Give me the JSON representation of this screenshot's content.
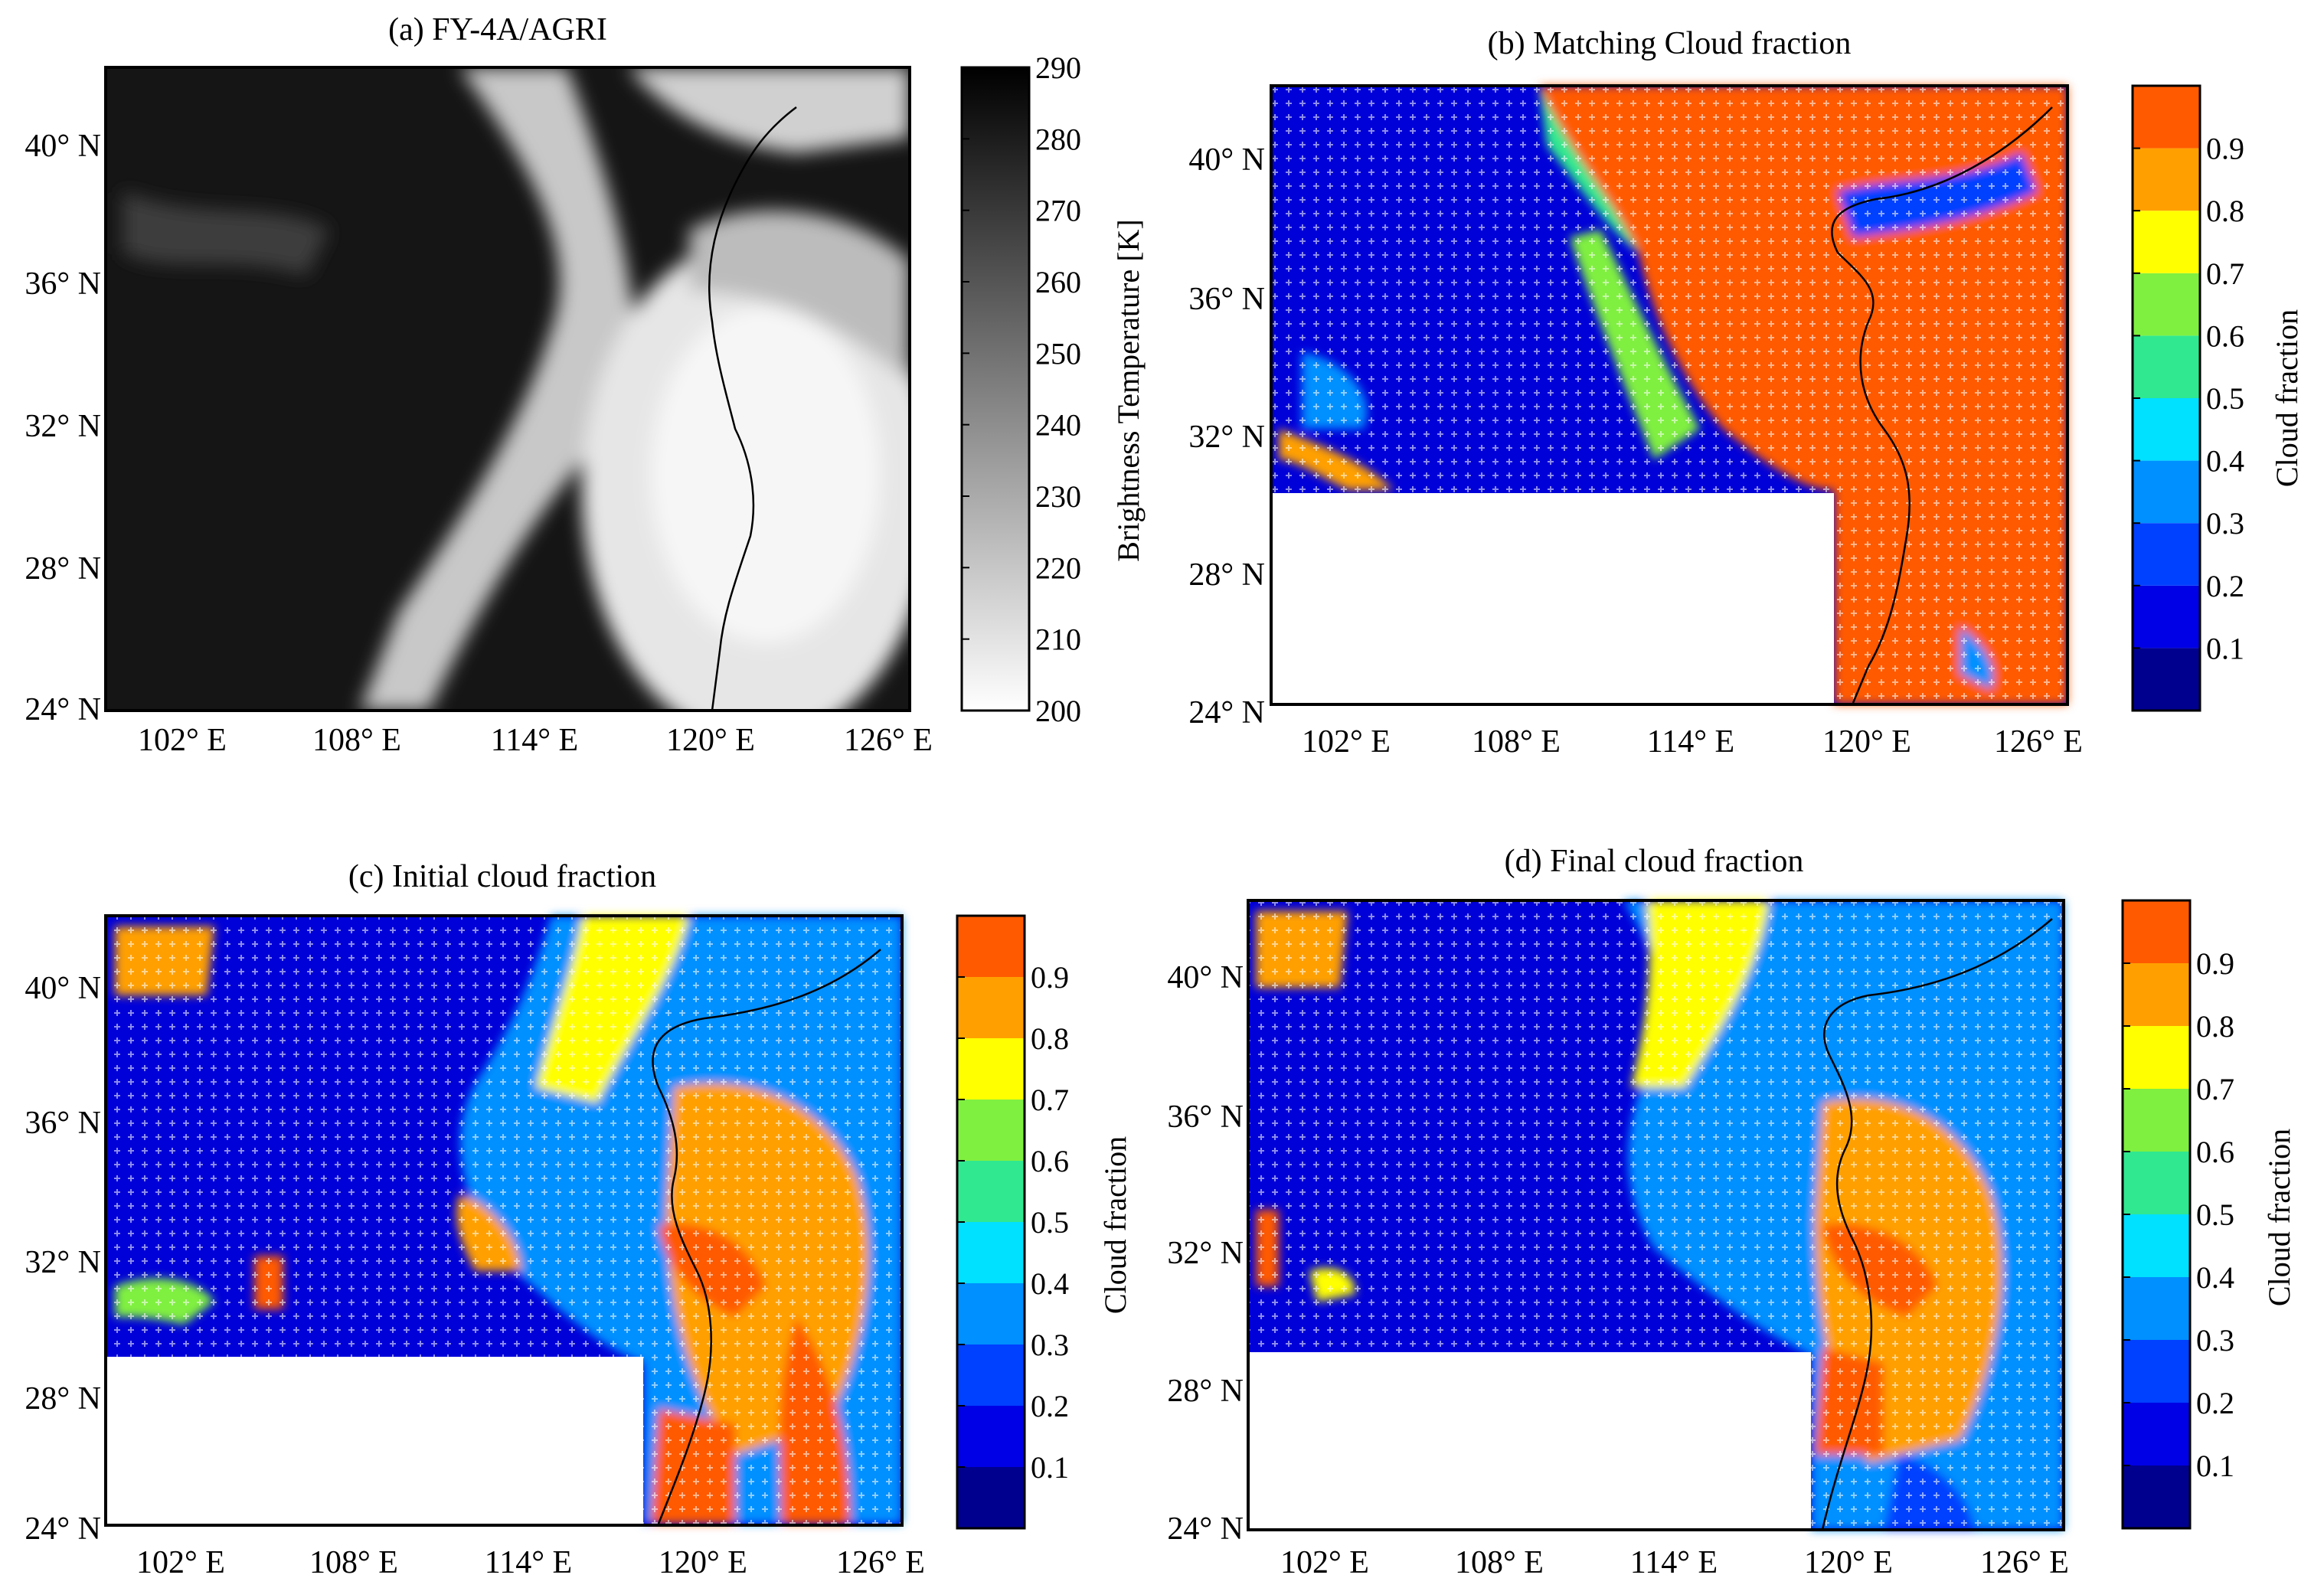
{
  "panels": [
    {
      "id": "a",
      "title": "(a) FY-4A/AGRI",
      "kind": "brightness",
      "colorbar_label": "Brightness Temperature [K]",
      "colorbar_ticks": [
        "200",
        "210",
        "220",
        "230",
        "240",
        "250",
        "260",
        "270",
        "280",
        "290"
      ],
      "colorbar_range": [
        200,
        290
      ],
      "lat_ticks": [
        "40° N",
        "36° N",
        "32° N",
        "28° N",
        "24° N"
      ],
      "lon_ticks": [
        "102° E",
        "108° E",
        "114° E",
        "120° E",
        "126° E"
      ]
    },
    {
      "id": "b",
      "title": "(b) Matching Cloud fraction",
      "kind": "cloud_matching",
      "colorbar_label": "Cloud fraction",
      "colorbar_ticks": [
        "0.1",
        "0.2",
        "0.3",
        "0.4",
        "0.5",
        "0.6",
        "0.7",
        "0.8",
        "0.9"
      ],
      "colorbar_range": [
        0,
        1
      ],
      "lat_ticks": [
        "40° N",
        "36° N",
        "32° N",
        "28° N",
        "24° N"
      ],
      "lon_ticks": [
        "102° E",
        "108° E",
        "114° E",
        "120° E",
        "126° E"
      ]
    },
    {
      "id": "c",
      "title": "(c) Initial cloud fraction",
      "kind": "cloud_initial",
      "colorbar_label": "Cloud fraction",
      "colorbar_ticks": [
        "0.1",
        "0.2",
        "0.3",
        "0.4",
        "0.5",
        "0.6",
        "0.7",
        "0.8",
        "0.9"
      ],
      "colorbar_range": [
        0,
        1
      ],
      "lat_ticks": [
        "40° N",
        "36° N",
        "32° N",
        "28° N",
        "24° N"
      ],
      "lon_ticks": [
        "102° E",
        "108° E",
        "114° E",
        "120° E",
        "126° E"
      ]
    },
    {
      "id": "d",
      "title": "(d) Final cloud fraction",
      "kind": "cloud_final",
      "colorbar_label": "Cloud fraction",
      "colorbar_ticks": [
        "0.1",
        "0.2",
        "0.3",
        "0.4",
        "0.5",
        "0.6",
        "0.7",
        "0.8",
        "0.9"
      ],
      "colorbar_range": [
        0,
        1
      ],
      "lat_ticks": [
        "40° N",
        "36° N",
        "32° N",
        "28° N",
        "24° N"
      ],
      "lon_ticks": [
        "102° E",
        "108° E",
        "114° E",
        "120° E",
        "126° E"
      ]
    }
  ],
  "colors": {
    "cloud_scale": [
      "#00008f",
      "#0000e6",
      "#0040ff",
      "#0090ff",
      "#00e0ff",
      "#30e890",
      "#80f040",
      "#ffff00",
      "#ffa000",
      "#ff5a00"
    ],
    "coastline": "#000000",
    "grid_marker": "#ffffff",
    "no_data": "#ffffff"
  }
}
